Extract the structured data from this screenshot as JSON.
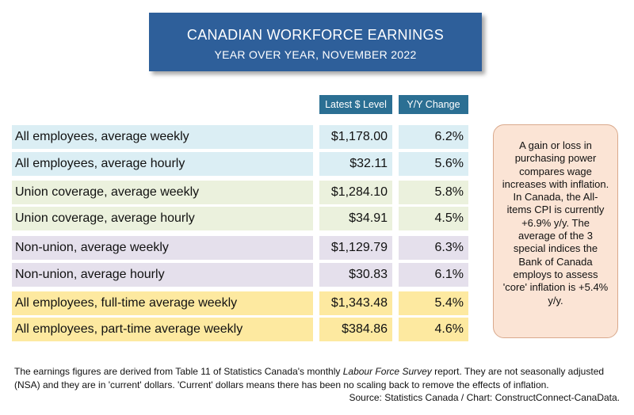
{
  "header": {
    "title": "CANADIAN WORKFORCE EARNINGS",
    "subtitle": "YEAR OVER YEAR, NOVEMBER 2022"
  },
  "chart_data": {
    "type": "table",
    "columns": [
      "Latest $ Level",
      "Y/Y Change"
    ],
    "rows": [
      {
        "label": "All employees, average weekly",
        "level": "$1,178.00",
        "change": "6.2%",
        "group": "blue"
      },
      {
        "label": "All employees, average hourly",
        "level": "$32.11",
        "change": "5.6%",
        "group": "blue"
      },
      {
        "label": "Union coverage, average weekly",
        "level": "$1,284.10",
        "change": "5.8%",
        "group": "green"
      },
      {
        "label": "Union coverage, average hourly",
        "level": "$34.91",
        "change": "4.5%",
        "group": "green"
      },
      {
        "label": "Non-union, average weekly",
        "level": "$1,129.79",
        "change": "6.3%",
        "group": "purple"
      },
      {
        "label": "Non-union, average hourly",
        "level": "$30.83",
        "change": "6.1%",
        "group": "purple"
      },
      {
        "label": "All employees, full-time average weekly",
        "level": "$1,343.48",
        "change": "5.4%",
        "group": "yellow"
      },
      {
        "label": "All employees, part-time average weekly",
        "level": "$384.86",
        "change": "4.6%",
        "group": "yellow"
      }
    ],
    "group_colors": {
      "blue": "#dbeef4",
      "green": "#ebf1dd",
      "purple": "#e5e0ec",
      "yellow": "#fde9a0"
    }
  },
  "note": {
    "text": "A gain or loss in purchasing power compares wage increases with inflation. In Canada, the All-items CPI is currently +6.9% y/y. The average of the 3 special indices the Bank of Canada employs to assess 'core' inflation is +5.4% y/y."
  },
  "footer": {
    "text_before": "The earnings figures are derived from Table 11 of Statistics Canada's monthly ",
    "text_italic": "Labour Force Survey",
    "text_after": " report. They are not seasonally adjusted (NSA) and they are in 'current' dollars. 'Current' dollars means there has been no scaling back to remove the effects of inflation.",
    "source": "Source: Statistics Canada / Chart: ConstructConnect-CanaData."
  },
  "colors": {
    "title_bg": "#2e5f9a",
    "header_bg": "#2b6f93",
    "note_bg": "#fbe4d5"
  }
}
